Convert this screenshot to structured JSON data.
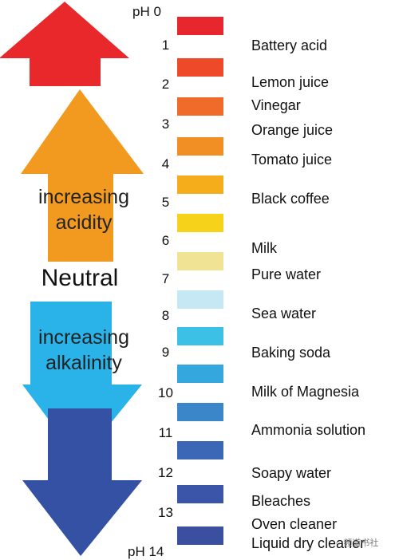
{
  "labels": {
    "ph_head": "pH 0",
    "ph_foot": "pH 14",
    "acid_line1": "increasing",
    "acid_line2": "acidity",
    "neutral": "Neutral",
    "alk_line1": "increasing",
    "alk_line2": "alkalinity",
    "watermark": "·· 频道书社"
  },
  "colors": {
    "acid_arrow": "#e8282a",
    "acid_arrow_front": "#f29a1f",
    "alkaline_arrow": "#2ab3e8",
    "alkaline_arrow_front": "#3451a4"
  },
  "scale": [
    {
      "ph": "1",
      "color": "#e8262d"
    },
    {
      "ph": "2",
      "color": "#ee4a2a"
    },
    {
      "ph": "3",
      "color": "#f06a2a"
    },
    {
      "ph": "4",
      "color": "#f18f24"
    },
    {
      "ph": "5",
      "color": "#f5ad1c"
    },
    {
      "ph": "6",
      "color": "#f6d31a"
    },
    {
      "ph": "7",
      "color": "#f0e394"
    },
    {
      "ph": "8",
      "color": "#c6e8f5"
    },
    {
      "ph": "9",
      "color": "#3cc0e6"
    },
    {
      "ph": "10",
      "color": "#34a7df"
    },
    {
      "ph": "11",
      "color": "#3a86c9"
    },
    {
      "ph": "12",
      "color": "#3b67b6"
    },
    {
      "ph": "13",
      "color": "#3b55a8"
    },
    {
      "ph": "",
      "color": "#3a4f9f"
    }
  ],
  "substances": [
    "Battery acid",
    "Lemon juice",
    "Vinegar",
    "Orange juice",
    "Tomato juice",
    "Black coffee",
    "Milk",
    "Pure water",
    "Sea water",
    "Baking soda",
    "Milk of Magnesia",
    "Ammonia solution",
    "Soapy water",
    "Bleaches",
    "Oven cleaner",
    "Liquid dry cleaner"
  ]
}
